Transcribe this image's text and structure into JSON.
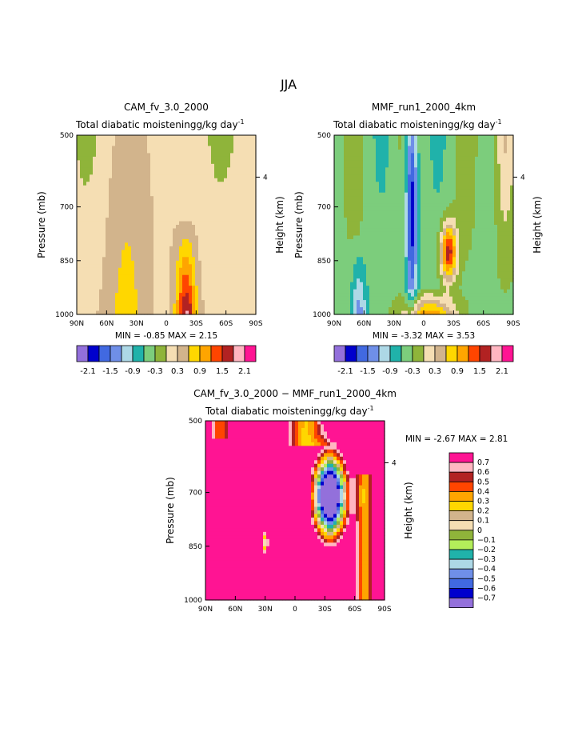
{
  "page_title": "JJA",
  "y_axis": {
    "pressure_label": "Pressure (mb)",
    "height_label": "Height (km)",
    "ticks": [
      "500",
      "700",
      "850",
      "1000"
    ],
    "height_tick": "4"
  },
  "x_axis": {
    "ticks": [
      "90N",
      "60N",
      "30N",
      "0",
      "30S",
      "60S",
      "90S"
    ]
  },
  "chart_data": [
    {
      "type": "heatmap",
      "id": "cam",
      "title": "CAM_fv_3.0_2000",
      "subtitle": "Total diabatic moistening",
      "units": "g/kg day",
      "units_exp": "-1",
      "min_label": "MIN =",
      "min_value": "-0.85",
      "max_label": "MAX =",
      "max_value": "2.15",
      "xlim": [
        90,
        -90
      ],
      "ylim": [
        500,
        1000
      ],
      "colorbar_ticks": [
        "-2.1",
        "-1.5",
        "-0.9",
        "-0.3",
        "0.3",
        "0.9",
        "1.5",
        "2.1"
      ]
    },
    {
      "type": "heatmap",
      "id": "mmf",
      "title": "MMF_run1_2000_4km",
      "subtitle": "Total diabatic moistening",
      "units": "g/kg day",
      "units_exp": "-1",
      "min_label": "MIN =",
      "min_value": "-3.32",
      "max_label": "MAX =",
      "max_value": "3.53",
      "xlim": [
        90,
        -90
      ],
      "ylim": [
        500,
        1000
      ],
      "colorbar_ticks": [
        "-2.1",
        "-1.5",
        "-0.9",
        "-0.3",
        "0.3",
        "0.9",
        "1.5",
        "2.1"
      ]
    },
    {
      "type": "heatmap",
      "id": "diff",
      "title": "CAM_fv_3.0_2000 − MMF_run1_2000_4km",
      "subtitle": "Total diabatic moistening",
      "units": "g/kg day",
      "units_exp": "-1",
      "min_label": "MIN =",
      "min_value": "-2.67",
      "max_label": "MAX =",
      "max_value": "2.81",
      "xlim": [
        90,
        -90
      ],
      "ylim": [
        500,
        1000
      ],
      "legend_labels": [
        "0.7",
        "0.6",
        "0.5",
        "0.4",
        "0.3",
        "0.2",
        "0.1",
        "0",
        "−0.1",
        "−0.2",
        "−0.3",
        "−0.4",
        "−0.5",
        "−0.6",
        "−0.7"
      ]
    }
  ],
  "palette": [
    "#9370db",
    "#0000cd",
    "#4169e1",
    "#6f8fe8",
    "#add8e6",
    "#20b2aa",
    "#7ccd7c",
    "#8fb43a",
    "#f5deb3",
    "#d2b48c",
    "#ffd700",
    "#ffa500",
    "#ff4500",
    "#b22222",
    "#ffb6c1",
    "#ff1493"
  ],
  "diff_palette": [
    "#ff1493",
    "#ffb6c1",
    "#b22222",
    "#ff4500",
    "#ffa500",
    "#ffd700",
    "#d2b48c",
    "#f5deb3",
    "#8fb43a",
    "#b3ee5a",
    "#20b2aa",
    "#add8e6",
    "#6f8fe8",
    "#4169e1",
    "#0000cd",
    "#9370db"
  ]
}
